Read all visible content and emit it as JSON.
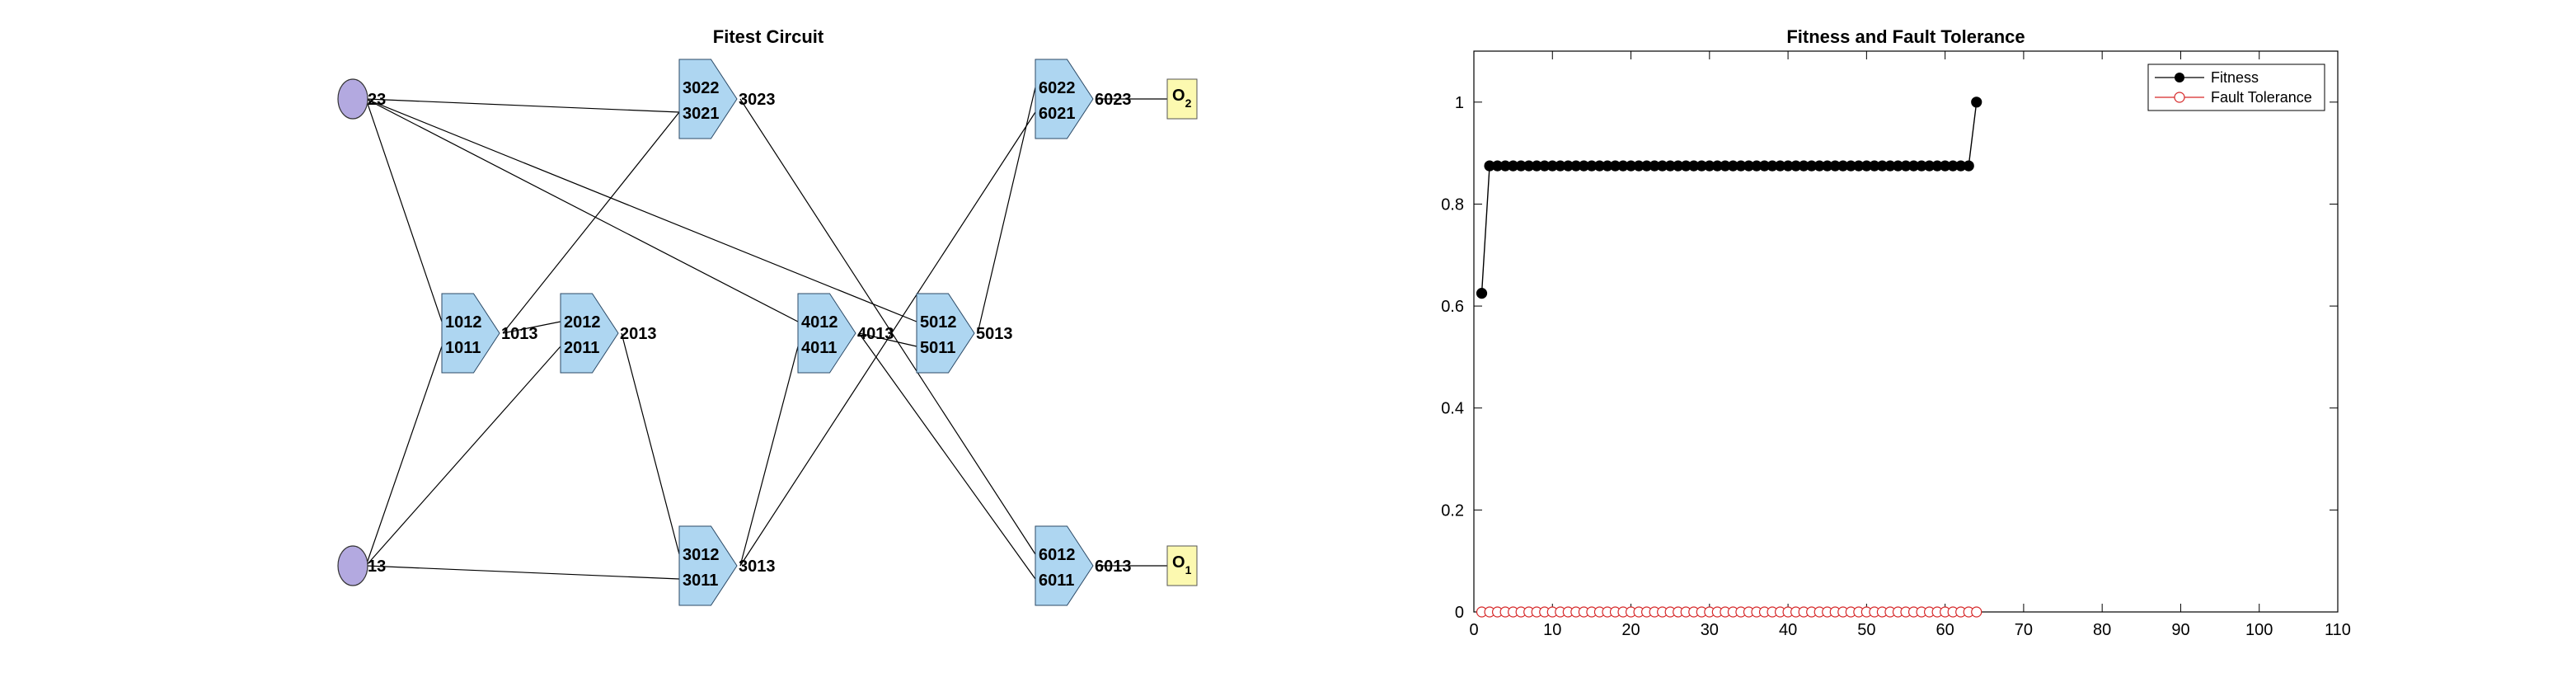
{
  "circuit": {
    "title": "Fitest Circuit",
    "inputs": [
      {
        "id": "in23",
        "label": "23"
      },
      {
        "id": "in13",
        "label": "13"
      }
    ],
    "gates": [
      {
        "id": "g10",
        "in_top": "1012",
        "in_bot": "1011",
        "out": "1013"
      },
      {
        "id": "g20",
        "in_top": "2012",
        "in_bot": "2011",
        "out": "2013"
      },
      {
        "id": "g32",
        "in_top": "3022",
        "in_bot": "3021",
        "out": "3023"
      },
      {
        "id": "g31",
        "in_top": "3012",
        "in_bot": "3011",
        "out": "3013"
      },
      {
        "id": "g40",
        "in_top": "4012",
        "in_bot": "4011",
        "out": "4013"
      },
      {
        "id": "g50",
        "in_top": "5012",
        "in_bot": "5011",
        "out": "5013"
      },
      {
        "id": "g62",
        "in_top": "6022",
        "in_bot": "6021",
        "out": "6023"
      },
      {
        "id": "g61",
        "in_top": "6012",
        "in_bot": "6011",
        "out": "6013"
      }
    ],
    "outputs": [
      {
        "id": "o2",
        "label": "O",
        "sub": "2"
      },
      {
        "id": "o1",
        "label": "O",
        "sub": "1"
      }
    ],
    "wires": [
      [
        "in23",
        "g10.top"
      ],
      [
        "in23",
        "g32.bot"
      ],
      [
        "in23",
        "g40.top"
      ],
      [
        "in23",
        "g50.top"
      ],
      [
        "in13",
        "g10.bot"
      ],
      [
        "in13",
        "g20.bot"
      ],
      [
        "in13",
        "g31.bot"
      ],
      [
        "g10.out",
        "g20.top"
      ],
      [
        "g10.out",
        "g32.bot"
      ],
      [
        "g20.out",
        "g31.top"
      ],
      [
        "g32.out",
        "g61.top"
      ],
      [
        "g31.out",
        "g40.bot"
      ],
      [
        "g31.out",
        "g62.bot"
      ],
      [
        "g40.out",
        "g50.bot"
      ],
      [
        "g40.out",
        "g61.bot"
      ],
      [
        "g50.out",
        "g62.top"
      ],
      [
        "g62.out",
        "o2"
      ],
      [
        "g61.out",
        "o1"
      ]
    ],
    "colors": {
      "input": "#b3a9e0",
      "gate": "#aed6f1",
      "output": "#fcf9b0"
    }
  },
  "chart_data": {
    "type": "line",
    "title": "Fitness and Fault Tolerance",
    "xlabel": "",
    "ylabel": "",
    "xlim": [
      0,
      110
    ],
    "ylim": [
      0,
      1.1
    ],
    "xticks": [
      0,
      10,
      20,
      30,
      40,
      50,
      60,
      70,
      80,
      90,
      100,
      110
    ],
    "yticks": [
      0,
      0.2,
      0.4,
      0.6,
      0.8,
      1
    ],
    "grid": false,
    "legend_position": "top-right",
    "series": [
      {
        "name": "Fitness",
        "color": "#000000",
        "marker": "filled-circle",
        "x": [
          1,
          2,
          3,
          4,
          5,
          6,
          7,
          8,
          9,
          10,
          11,
          12,
          13,
          14,
          15,
          16,
          17,
          18,
          19,
          20,
          21,
          22,
          23,
          24,
          25,
          26,
          27,
          28,
          29,
          30,
          31,
          32,
          33,
          34,
          35,
          36,
          37,
          38,
          39,
          40,
          41,
          42,
          43,
          44,
          45,
          46,
          47,
          48,
          49,
          50,
          51,
          52,
          53,
          54,
          55,
          56,
          57,
          58,
          59,
          60,
          61,
          62,
          63,
          64
        ],
        "y": [
          0.625,
          0.875,
          0.875,
          0.875,
          0.875,
          0.875,
          0.875,
          0.875,
          0.875,
          0.875,
          0.875,
          0.875,
          0.875,
          0.875,
          0.875,
          0.875,
          0.875,
          0.875,
          0.875,
          0.875,
          0.875,
          0.875,
          0.875,
          0.875,
          0.875,
          0.875,
          0.875,
          0.875,
          0.875,
          0.875,
          0.875,
          0.875,
          0.875,
          0.875,
          0.875,
          0.875,
          0.875,
          0.875,
          0.875,
          0.875,
          0.875,
          0.875,
          0.875,
          0.875,
          0.875,
          0.875,
          0.875,
          0.875,
          0.875,
          0.875,
          0.875,
          0.875,
          0.875,
          0.875,
          0.875,
          0.875,
          0.875,
          0.875,
          0.875,
          0.875,
          0.875,
          0.875,
          0.875,
          1
        ]
      },
      {
        "name": "Fault Tolerance",
        "color": "#d62728",
        "marker": "open-circle",
        "x": [
          1,
          2,
          3,
          4,
          5,
          6,
          7,
          8,
          9,
          10,
          11,
          12,
          13,
          14,
          15,
          16,
          17,
          18,
          19,
          20,
          21,
          22,
          23,
          24,
          25,
          26,
          27,
          28,
          29,
          30,
          31,
          32,
          33,
          34,
          35,
          36,
          37,
          38,
          39,
          40,
          41,
          42,
          43,
          44,
          45,
          46,
          47,
          48,
          49,
          50,
          51,
          52,
          53,
          54,
          55,
          56,
          57,
          58,
          59,
          60,
          61,
          62,
          63,
          64
        ],
        "y": [
          0,
          0,
          0,
          0,
          0,
          0,
          0,
          0,
          0,
          0,
          0,
          0,
          0,
          0,
          0,
          0,
          0,
          0,
          0,
          0,
          0,
          0,
          0,
          0,
          0,
          0,
          0,
          0,
          0,
          0,
          0,
          0,
          0,
          0,
          0,
          0,
          0,
          0,
          0,
          0,
          0,
          0,
          0,
          0,
          0,
          0,
          0,
          0,
          0,
          0,
          0,
          0,
          0,
          0,
          0,
          0,
          0,
          0,
          0,
          0,
          0,
          0,
          0,
          0
        ]
      }
    ]
  }
}
